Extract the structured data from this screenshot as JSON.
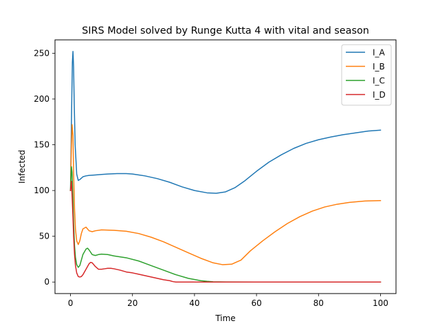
{
  "chart_data": {
    "type": "line",
    "title": "SIRS Model solved by Runge Kutta 4 with vital and season",
    "xlabel": "Time",
    "ylabel": "Infected",
    "xlim": [
      -5,
      105
    ],
    "ylim": [
      -12.6,
      264.6
    ],
    "xticks": [
      "0",
      "20",
      "40",
      "60",
      "80",
      "100"
    ],
    "yticks": [
      "0",
      "50",
      "100",
      "150",
      "200",
      "250"
    ],
    "grid": false,
    "legend_position": "top-right",
    "colors": {
      "I_A": "#1f77b4",
      "I_B": "#ff7f0e",
      "I_C": "#2ca02c",
      "I_D": "#d62728"
    },
    "series": [
      {
        "name": "I_A",
        "x": [
          0,
          0.3,
          0.6,
          0.8,
          1.0,
          1.2,
          1.5,
          2.0,
          2.5,
          3.0,
          4.0,
          5.0,
          6.0,
          8.0,
          10,
          12,
          15,
          18,
          20,
          24,
          28,
          32,
          36,
          40,
          44,
          47,
          50,
          53,
          56,
          60,
          64,
          68,
          72,
          76,
          80,
          84,
          88,
          92,
          96,
          100
        ],
        "y": [
          100,
          175,
          240,
          252,
          235,
          195,
          150,
          118,
          111,
          112,
          115,
          116,
          116.5,
          117,
          117.5,
          118,
          118.5,
          118.5,
          118,
          116,
          113,
          109,
          104,
          100,
          97.5,
          97,
          98.5,
          103,
          110,
          121,
          131,
          139,
          146,
          151.5,
          155.5,
          158.5,
          161,
          163,
          165,
          166
        ]
      },
      {
        "name": "I_B",
        "x": [
          0,
          0.3,
          0.5,
          0.8,
          1.0,
          1.3,
          1.6,
          2.0,
          2.5,
          3.0,
          3.5,
          4.0,
          5.0,
          6.0,
          7.0,
          8.0,
          10,
          14,
          18,
          22,
          26,
          30,
          34,
          38,
          42,
          46,
          49,
          52,
          55,
          58,
          62,
          66,
          70,
          74,
          78,
          82,
          86,
          90,
          95,
          100
        ],
        "y": [
          100,
          150,
          172,
          160,
          120,
          80,
          58,
          45,
          41,
          45,
          53,
          58,
          60,
          56,
          55,
          56,
          57,
          56.5,
          55.5,
          53,
          49,
          44,
          38,
          32,
          26,
          21,
          19,
          19.5,
          24,
          34,
          45,
          55,
          64,
          71.5,
          77.5,
          82,
          85,
          87,
          88.5,
          89
        ]
      },
      {
        "name": "I_C",
        "x": [
          0,
          0.3,
          0.5,
          0.8,
          1.0,
          1.3,
          1.6,
          2.0,
          2.5,
          3.0,
          3.5,
          4.0,
          5.0,
          5.5,
          6.0,
          7.0,
          8.0,
          9.0,
          10,
          12,
          14,
          18,
          22,
          26,
          30,
          34,
          38,
          42,
          44,
          46,
          50,
          60,
          70,
          80,
          90,
          100
        ],
        "y": [
          100,
          126,
          120,
          90,
          65,
          40,
          27,
          19,
          16,
          18,
          24,
          30,
          36,
          37,
          35,
          30,
          29,
          30,
          30.5,
          30,
          28.5,
          26.5,
          23,
          18,
          13,
          8,
          4,
          1.5,
          0.8,
          0.3,
          0.1,
          0,
          0,
          0,
          0,
          0
        ]
      },
      {
        "name": "I_D",
        "x": [
          0,
          0.3,
          0.5,
          0.8,
          1.0,
          1.3,
          1.6,
          2.0,
          2.5,
          3.0,
          3.5,
          4.0,
          5.0,
          6.0,
          6.5,
          7.0,
          8.0,
          9.0,
          10,
          11,
          12,
          13,
          14,
          16,
          18,
          20,
          22,
          24,
          26,
          28,
          30,
          32,
          33,
          34,
          40,
          50,
          60,
          70,
          80,
          90,
          100
        ],
        "y": [
          100,
          110,
          95,
          70,
          50,
          30,
          18,
          10,
          6,
          5.5,
          6,
          8,
          14,
          20,
          21.5,
          21,
          17,
          14,
          14,
          14.5,
          15,
          15,
          14.5,
          13,
          11,
          10,
          8.5,
          7,
          5.5,
          4,
          2.5,
          1.5,
          0.5,
          0,
          0,
          0,
          0,
          0,
          0,
          0,
          0
        ]
      }
    ]
  }
}
